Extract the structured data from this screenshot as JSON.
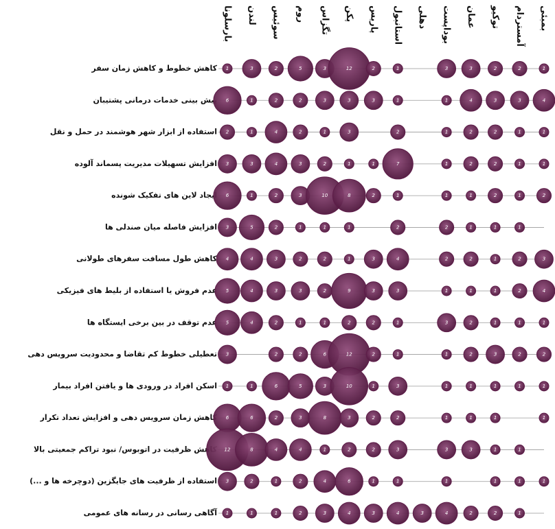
{
  "chart_data": {
    "type": "bubble_matrix",
    "color": "#5e1c49",
    "columns": [
      "بارسلونا",
      "لندن",
      "سوئیس",
      "روم",
      "تگزاس",
      "پکن",
      "پاریس",
      "استانبول",
      "دهلی",
      "بوداپست",
      "عمان",
      "توکیو",
      "آمستردام",
      "بمبئی"
    ],
    "rows": [
      "کاهش خطوط و کاهش زمان سفر",
      "پیش بینی خدمات درمانی پشتیبان",
      "استفاده از ابزار شهر هوشمند در حمل و نقل",
      "افزایش تسهیلات مدیریت پسماند آلوده",
      "ایجاد لاین های تفکیک شونده",
      "افزایش فاصله میان صندلی ها",
      "کاهش طول مسافت سفرهای طولانی",
      "عدم فروش یا استفاده از بلیط های فیزیکی",
      "عدم توقف در بین برخی ایستگاه ها",
      "تعطیلی خطوط کم تقاضا و محدودیت سرویس دهی",
      "اسکن افراد در ورودی ها و یافتن افراد بیمار",
      "کاهش زمان سرویس دهی و افزایش تعداد تکرار",
      "کاهش ظرفیت در اتوبوس/ نبود تراکم جمعیتی بالا",
      "استفاده از ظرفیت های جایگزین (دوچرخه ها و ...)",
      "آگاهی رسانی در رسانه های عمومی"
    ],
    "values": [
      [
        1,
        3,
        2,
        5,
        3,
        12,
        2,
        1,
        null,
        3,
        3,
        2,
        2,
        1
      ],
      [
        6,
        1,
        2,
        2,
        3,
        3,
        3,
        1,
        null,
        1,
        4,
        3,
        3,
        4
      ],
      [
        2,
        1,
        4,
        2,
        1,
        3,
        null,
        2,
        null,
        1,
        2,
        2,
        1,
        1
      ],
      [
        3,
        3,
        4,
        3,
        2,
        1,
        1,
        7,
        null,
        1,
        2,
        2,
        1,
        1
      ],
      [
        6,
        1,
        2,
        3,
        10,
        8,
        2,
        1,
        null,
        1,
        1,
        2,
        1,
        2
      ],
      [
        3,
        5,
        2,
        1,
        1,
        1,
        null,
        2,
        null,
        2,
        1,
        1,
        1,
        null
      ],
      [
        4,
        4,
        3,
        2,
        2,
        1,
        3,
        4,
        null,
        2,
        2,
        1,
        2,
        3
      ],
      [
        5,
        4,
        3,
        3,
        2,
        9,
        3,
        3,
        null,
        1,
        1,
        1,
        2,
        4
      ],
      [
        5,
        4,
        2,
        1,
        1,
        2,
        2,
        1,
        null,
        3,
        2,
        1,
        1,
        1
      ],
      [
        3,
        null,
        2,
        2,
        6,
        12,
        2,
        1,
        null,
        1,
        2,
        3,
        2,
        2
      ],
      [
        1,
        1,
        6,
        5,
        3,
        10,
        1,
        3,
        null,
        1,
        1,
        1,
        1,
        1
      ],
      [
        6,
        6,
        2,
        3,
        8,
        3,
        2,
        2,
        null,
        1,
        1,
        1,
        null,
        1
      ],
      [
        12,
        8,
        4,
        4,
        1,
        2,
        2,
        3,
        null,
        3,
        3,
        1,
        1,
        null
      ],
      [
        3,
        2,
        1,
        2,
        4,
        6,
        1,
        1,
        null,
        1,
        null,
        1,
        1,
        1
      ],
      [
        1,
        1,
        1,
        2,
        3,
        4,
        3,
        4,
        3,
        4,
        2,
        2,
        1,
        null
      ]
    ]
  }
}
